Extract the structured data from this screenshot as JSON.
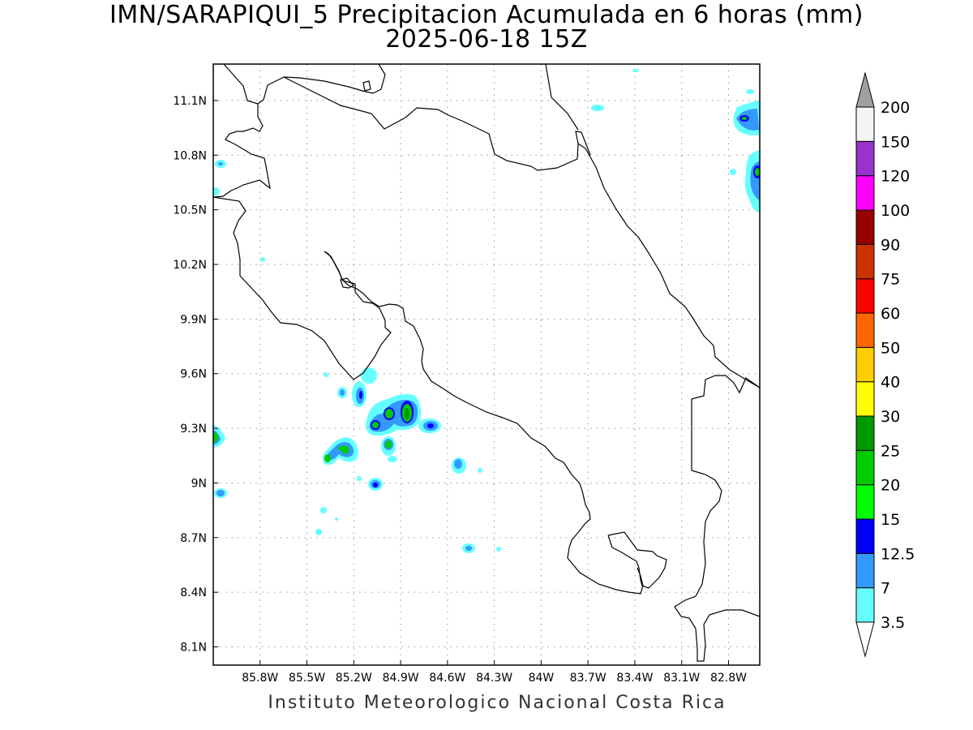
{
  "title": {
    "line1": "IMN/SARAPIQUI_5 Precipitacion Acumulada en 6 horas (mm)",
    "line2": "2025-06-18 15Z"
  },
  "footer": "Instituto Meteorologico Nacional Costa Rica",
  "map": {
    "lon_range": [
      -86.1,
      -82.6
    ],
    "lat_range": [
      8.0,
      11.3
    ],
    "lon_ticks": [
      "85.8W",
      "85.5W",
      "85.2W",
      "84.9W",
      "84.6W",
      "84.3W",
      "84W",
      "83.7W",
      "83.4W",
      "83.1W",
      "82.8W"
    ],
    "lat_ticks": [
      "11.1N",
      "10.8N",
      "10.5N",
      "10.2N",
      "9.9N",
      "9.6N",
      "9.3N",
      "9N",
      "8.7N",
      "8.4N",
      "8.1N"
    ],
    "grid": "dotted"
  },
  "legend": {
    "levels": [
      "3.5",
      "7",
      "12.5",
      "15",
      "20",
      "25",
      "30",
      "40",
      "50",
      "60",
      "75",
      "90",
      "100",
      "120",
      "150",
      "200"
    ],
    "colors": [
      "#66ffff",
      "#3399ff",
      "#0000ff",
      "#00ff00",
      "#00cc00",
      "#009900",
      "#ffff00",
      "#ffcc00",
      "#ff6600",
      "#ff0000",
      "#cc3300",
      "#990000",
      "#ff00ff",
      "#9933cc",
      "#f5f5f5",
      "#a0a0a0"
    ]
  }
}
